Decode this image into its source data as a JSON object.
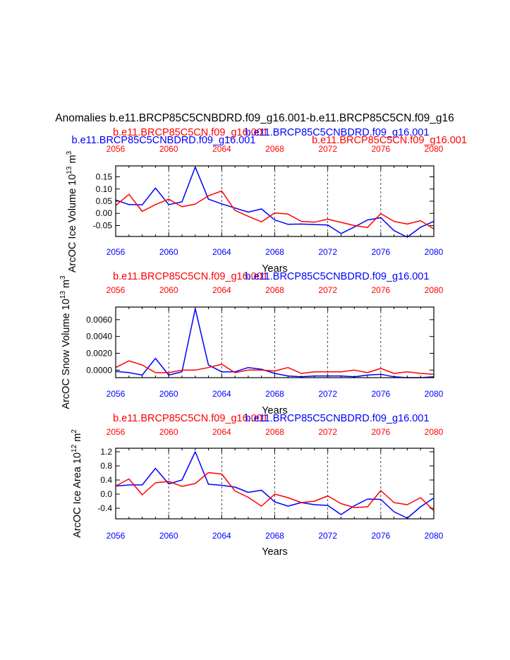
{
  "figure_title": "Anomalies b.e11.BRCP85C5CNBDRD.f09_g16.001-b.e11.BRCP85C5CN.f09_g16",
  "colors": {
    "run_a": "#ff0000",
    "run_b": "#0000ff",
    "axis": "#000000",
    "grid": "#000000"
  },
  "chart_data": [
    {
      "type": "line",
      "panel": "ice-volume",
      "ylabel_main": "ArcOC Ice Volume 10",
      "ylabel_exp": "13",
      "ylabel_unit": "m",
      "ylabel_unit_exp": "3",
      "xlabel": "Years",
      "top_titles": [
        {
          "text": "b.e11.BRCP85C5CN.f09_g16.001",
          "color": "#ff0000"
        },
        {
          "text": "b.e11.BRCP85C5CNBDRD.f09_g16.001",
          "color": "#0000ff"
        },
        {
          "text": "b.e11.BRCP85C5CNBDRD.f09_g16.001",
          "color": "#0000ff"
        },
        {
          "text": "b.e11.BRCP85C5CN.f09_g16.001",
          "color": "#ff0000"
        }
      ],
      "x": [
        2056,
        2057,
        2058,
        2059,
        2060,
        2061,
        2062,
        2063,
        2064,
        2065,
        2066,
        2067,
        2068,
        2069,
        2070,
        2071,
        2072,
        2073,
        2074,
        2075,
        2076,
        2077,
        2078,
        2079,
        2080
      ],
      "xlim": [
        2056,
        2080
      ],
      "ylim": [
        -0.095,
        0.195
      ],
      "xticks": [
        "2056",
        "2060",
        "2064",
        "2068",
        "2072",
        "2076",
        "2080"
      ],
      "yticks": [
        "-0.05",
        "0.00",
        "0.05",
        "0.10",
        "0.15"
      ],
      "series": [
        {
          "name": "b.e11.BRCP85C5CNBDRD.f09_g16.001",
          "color": "#0000ff",
          "values": [
            0.055,
            0.036,
            0.035,
            0.104,
            0.036,
            0.047,
            0.19,
            0.058,
            0.039,
            0.022,
            0.005,
            0.018,
            -0.027,
            -0.045,
            -0.044,
            -0.046,
            -0.048,
            -0.083,
            -0.056,
            -0.027,
            -0.018,
            -0.071,
            -0.098,
            -0.057,
            -0.033
          ]
        },
        {
          "name": "b.e11.BRCP85C5CN.f09_g16.001",
          "color": "#ff0000",
          "values": [
            0.032,
            0.078,
            0.008,
            0.036,
            0.058,
            0.027,
            0.038,
            0.072,
            0.092,
            0.012,
            -0.012,
            -0.035,
            0.002,
            -0.003,
            -0.033,
            -0.036,
            -0.024,
            -0.037,
            -0.05,
            -0.058,
            -0.001,
            -0.033,
            -0.044,
            -0.03,
            -0.064
          ]
        }
      ]
    },
    {
      "type": "line",
      "panel": "snow-volume",
      "ylabel_main": "ArcOC Snow Volume 10",
      "ylabel_exp": "13",
      "ylabel_unit": "m",
      "ylabel_unit_exp": "3",
      "xlabel": "Years",
      "top_titles": [
        {
          "text": "b.e11.BRCP85C5CN.f09_g16.001",
          "color": "#ff0000"
        },
        {
          "text": "b.e11.BRCP85C5CNBDRD.f09_g16.001",
          "color": "#0000ff"
        }
      ],
      "x": [
        2056,
        2057,
        2058,
        2059,
        2060,
        2061,
        2062,
        2063,
        2064,
        2065,
        2066,
        2067,
        2068,
        2069,
        2070,
        2071,
        2072,
        2073,
        2074,
        2075,
        2076,
        2077,
        2078,
        2079,
        2080
      ],
      "xlim": [
        2056,
        2080
      ],
      "ylim": [
        -0.0009,
        0.0075
      ],
      "xticks": [
        "2056",
        "2060",
        "2064",
        "2068",
        "2072",
        "2076",
        "2080"
      ],
      "yticks": [
        "0.0000",
        "0.0020",
        "0.0040",
        "0.0060"
      ],
      "series": [
        {
          "name": "b.e11.BRCP85C5CNBDRD.f09_g16.001",
          "color": "#0000ff",
          "values": [
            -0.00015,
            -0.0003,
            -0.0006,
            0.0014,
            -0.0006,
            -0.0002,
            0.0073,
            0.0006,
            -0.0002,
            -0.0002,
            0.0003,
            0.0001,
            -0.0004,
            -0.0007,
            -0.0008,
            -0.0007,
            -0.0007,
            -0.0007,
            -0.0008,
            -0.0006,
            -0.0005,
            -0.0008,
            -0.0009,
            -0.0009,
            -0.0008
          ]
        },
        {
          "name": "b.e11.BRCP85C5CN.f09_g16.001",
          "color": "#ff0000",
          "values": [
            0.0003,
            0.0011,
            0.0006,
            -0.0003,
            -0.0003,
            0.0,
            0.0,
            0.0003,
            0.0007,
            -0.0003,
            0.0,
            0.0,
            -0.0001,
            0.0003,
            -0.0004,
            -0.0002,
            -0.0002,
            -0.0002,
            0.0,
            -0.0003,
            0.0002,
            -0.0004,
            -0.0002,
            -0.0004,
            -0.0005
          ]
        }
      ]
    },
    {
      "type": "line",
      "panel": "ice-area",
      "ylabel_main": "ArcOC Ice Area 10",
      "ylabel_exp": "12",
      "ylabel_unit": "m",
      "ylabel_unit_exp": "2",
      "xlabel": "Years",
      "top_titles": [
        {
          "text": "b.e11.BRCP85C5CN.f09_g16.001",
          "color": "#ff0000"
        },
        {
          "text": "b.e11.BRCP85C5CNBDRD.f09_g16.001",
          "color": "#0000ff"
        }
      ],
      "x": [
        2056,
        2057,
        2058,
        2059,
        2060,
        2061,
        2062,
        2063,
        2064,
        2065,
        2066,
        2067,
        2068,
        2069,
        2070,
        2071,
        2072,
        2073,
        2074,
        2075,
        2076,
        2077,
        2078,
        2079,
        2080
      ],
      "xlim": [
        2056,
        2080
      ],
      "ylim": [
        -0.7,
        1.3
      ],
      "xticks": [
        "2056",
        "2060",
        "2064",
        "2068",
        "2072",
        "2076",
        "2080"
      ],
      "yticks": [
        "-0.4",
        "0.0",
        "0.4",
        "0.8",
        "1.2"
      ],
      "series": [
        {
          "name": "b.e11.BRCP85C5CNBDRD.f09_g16.001",
          "color": "#0000ff",
          "values": [
            0.23,
            0.26,
            0.26,
            0.73,
            0.29,
            0.4,
            1.2,
            0.28,
            0.25,
            0.2,
            0.05,
            0.11,
            -0.22,
            -0.34,
            -0.24,
            -0.3,
            -0.32,
            -0.58,
            -0.33,
            -0.14,
            -0.15,
            -0.5,
            -0.68,
            -0.36,
            -0.11
          ]
        },
        {
          "name": "b.e11.BRCP85C5CN.f09_g16.001",
          "color": "#ff0000",
          "values": [
            0.23,
            0.43,
            -0.02,
            0.32,
            0.36,
            0.22,
            0.3,
            0.61,
            0.57,
            0.09,
            -0.09,
            -0.34,
            0.0,
            -0.1,
            -0.24,
            -0.2,
            -0.05,
            -0.27,
            -0.38,
            -0.36,
            0.1,
            -0.24,
            -0.3,
            -0.1,
            -0.47
          ]
        }
      ]
    }
  ]
}
